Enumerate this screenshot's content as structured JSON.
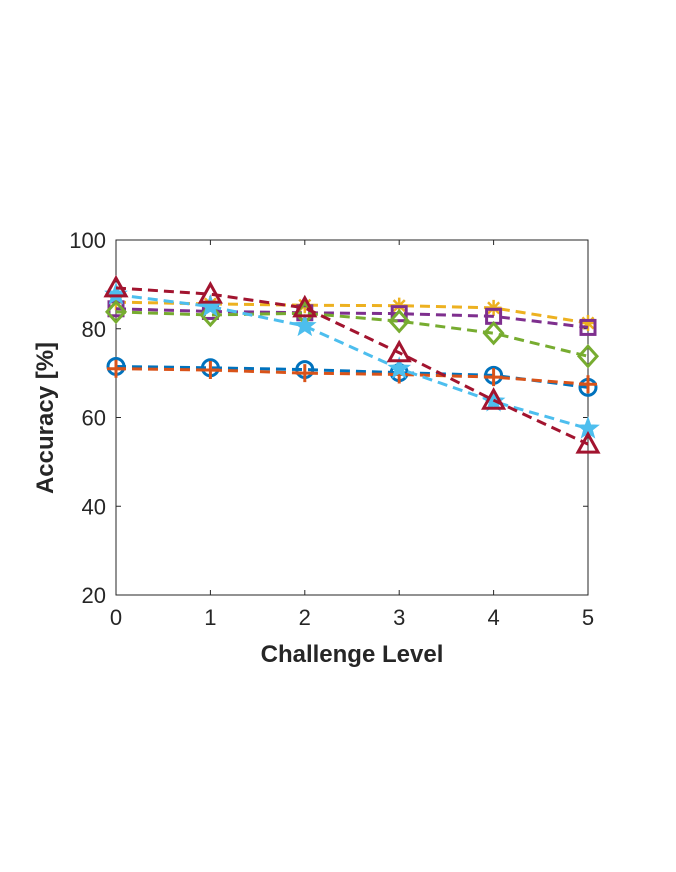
{
  "chart_data": {
    "type": "line",
    "title": "",
    "xlabel": "Challenge Level",
    "ylabel": "Accuracy [%]",
    "xlim": [
      0,
      5
    ],
    "ylim": [
      20,
      100
    ],
    "x": [
      0,
      1,
      2,
      3,
      4,
      5
    ],
    "x_ticks": [
      "0",
      "1",
      "2",
      "3",
      "4",
      "5"
    ],
    "y_ticks": [
      "20",
      "40",
      "60",
      "80",
      "100"
    ],
    "grid": false,
    "legend": "none",
    "series": [
      {
        "marker": "circle",
        "color": "#0072BD",
        "values": [
          71.5,
          71.2,
          70.8,
          70.1,
          69.5,
          66.8
        ]
      },
      {
        "marker": "plus",
        "color": "#D95319",
        "values": [
          71.0,
          70.7,
          70.0,
          69.7,
          69.1,
          67.5
        ]
      },
      {
        "marker": "asterisk",
        "color": "#EDB120",
        "values": [
          86.0,
          85.6,
          85.3,
          85.2,
          84.7,
          81.3
        ]
      },
      {
        "marker": "square",
        "color": "#7E2F8E",
        "values": [
          84.5,
          83.9,
          83.6,
          83.4,
          82.8,
          80.3
        ]
      },
      {
        "marker": "diamond",
        "color": "#77AC30",
        "values": [
          83.8,
          83.1,
          83.5,
          81.7,
          79.0,
          73.8
        ]
      },
      {
        "marker": "pentagram",
        "color": "#4DBEEE",
        "values": [
          87.7,
          85.0,
          80.6,
          71.0,
          63.6,
          57.5
        ]
      },
      {
        "marker": "triangle",
        "color": "#A2142F",
        "values": [
          89.2,
          87.8,
          84.7,
          74.6,
          63.9,
          54.0
        ]
      }
    ]
  }
}
